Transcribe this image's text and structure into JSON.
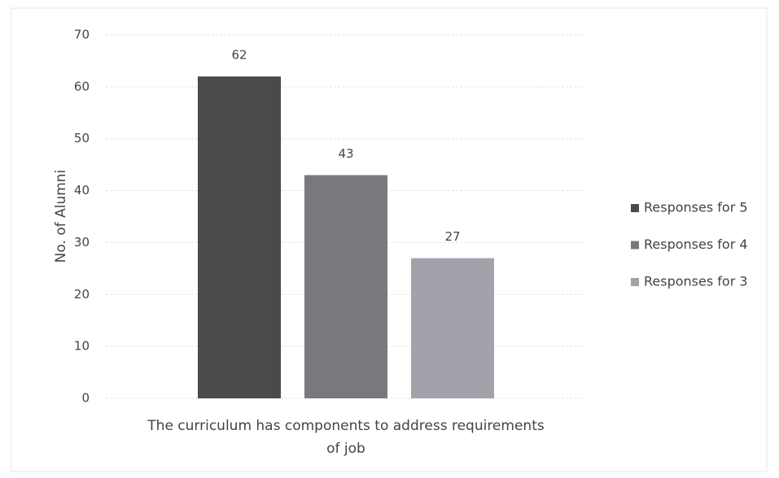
{
  "chart_data": {
    "type": "bar",
    "categories": [
      "The curriculum has components to address requirements of job"
    ],
    "series": [
      {
        "name": "Responses for 5",
        "color": "#4a4a4c",
        "values": [
          62
        ]
      },
      {
        "name": "Responses for 4",
        "color": "#78787e",
        "values": [
          43
        ]
      },
      {
        "name": "Responses for 3",
        "color": "#a2a2aa",
        "values": [
          27
        ]
      }
    ],
    "y_label": "No. of Alumni",
    "ylim": [
      0,
      70
    ],
    "yticks": [
      0,
      10,
      20,
      30,
      40,
      50,
      60,
      70
    ],
    "grid": true,
    "legend": "right"
  }
}
